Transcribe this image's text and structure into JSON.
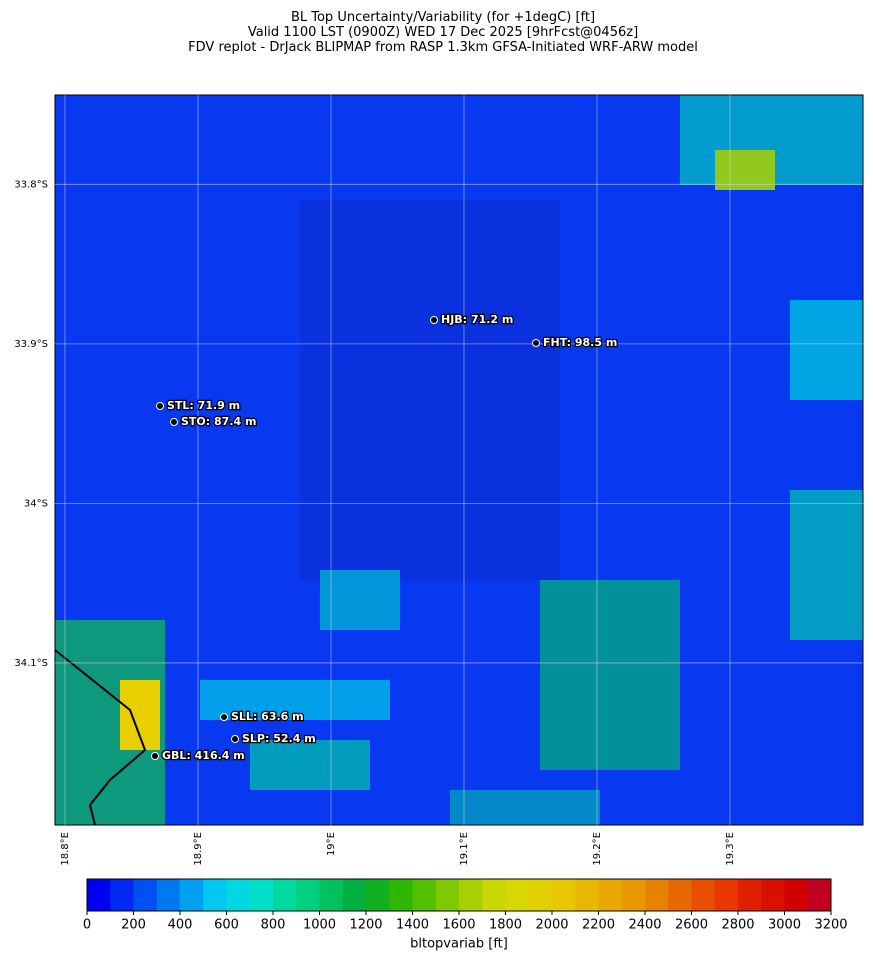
{
  "chart_data": {
    "type": "map",
    "title": [
      "BL Top Uncertainty/Variability (for +1degC) [ft]",
      "Valid 1100 LST (0900Z) WED 17 Dec 2025 [9hrFcst@0456z]",
      "FDV replot - DrJack BLIPMAP from RASP 1.3km GFSA-Initiated WRF-ARW model"
    ],
    "xlim": [
      18.7925,
      19.4
    ],
    "ylim": [
      -34.2016,
      -33.744
    ],
    "xticks": [
      {
        "value": 18.8,
        "label": "18.8°E"
      },
      {
        "value": 18.9,
        "label": "18.9°E"
      },
      {
        "value": 19.0,
        "label": "19°E"
      },
      {
        "value": 19.1,
        "label": "19.1°E"
      },
      {
        "value": 19.2,
        "label": "19.2°E"
      },
      {
        "value": 19.3,
        "label": "19.3°E"
      }
    ],
    "yticks": [
      {
        "value": -33.8,
        "label": "33.8°S"
      },
      {
        "value": -33.9,
        "label": "33.9°S"
      },
      {
        "value": -34.0,
        "label": "34°S"
      },
      {
        "value": -34.1,
        "label": "34.1°S"
      }
    ],
    "stations": [
      "HJB: 71.2 m",
      "FHT: 98.5 m",
      "STL: 71.9 m",
      "STO: 87.4 m",
      "SLL: 63.6 m",
      "SLP: 52.4 m",
      "GBL: 416.4 m"
    ],
    "colorbar": {
      "label": "bltopvariab [ft]",
      "lim": [
        0,
        3200
      ],
      "ticks": [
        0,
        200,
        400,
        600,
        800,
        1000,
        1200,
        1400,
        1600,
        1800,
        2000,
        2200,
        2400,
        2600,
        2800,
        3000,
        3200
      ],
      "colors": [
        "#0000f0",
        "#0028f0",
        "#0050f0",
        "#0078f0",
        "#00a0f0",
        "#00c8f0",
        "#00d8e0",
        "#00e0c8",
        "#00d8a0",
        "#00d080",
        "#00c060",
        "#00b040",
        "#10b020",
        "#30b800",
        "#50c000",
        "#80c800",
        "#a8d000",
        "#c8d800",
        "#d8d800",
        "#e0d000",
        "#e8c800",
        "#e8b800",
        "#e8a800",
        "#e89800",
        "#e88000",
        "#e86800",
        "#e85000",
        "#e83800",
        "#e02000",
        "#d81000",
        "#d00000",
        "#c00020"
      ]
    }
  }
}
